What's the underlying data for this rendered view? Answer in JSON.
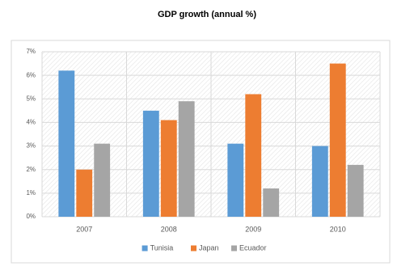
{
  "chart_data": {
    "type": "bar",
    "title": "GDP growth (annual %)",
    "categories": [
      "2007",
      "2008",
      "2009",
      "2010"
    ],
    "series": [
      {
        "name": "Tunisia",
        "color": "#5b9bd5",
        "values": [
          6.2,
          4.5,
          3.1,
          3.0
        ]
      },
      {
        "name": "Japan",
        "color": "#ed7d31",
        "values": [
          2.0,
          4.1,
          5.2,
          6.5
        ]
      },
      {
        "name": "Ecuador",
        "color": "#a5a5a5",
        "values": [
          3.1,
          4.9,
          1.2,
          2.2
        ]
      }
    ],
    "ylim": [
      0,
      7
    ],
    "yticks": [
      {
        "value": 0,
        "label": "0%"
      },
      {
        "value": 1,
        "label": "1%"
      },
      {
        "value": 2,
        "label": "2%"
      },
      {
        "value": 3,
        "label": "3%"
      },
      {
        "value": 4,
        "label": "4%"
      },
      {
        "value": 5,
        "label": "5%"
      },
      {
        "value": 6,
        "label": "6%"
      },
      {
        "value": 7,
        "label": "7%"
      }
    ],
    "grid": true,
    "legend": "bottom"
  }
}
